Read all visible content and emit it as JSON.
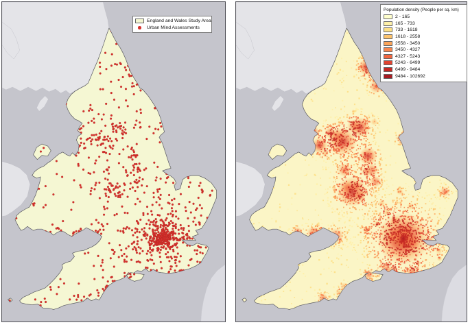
{
  "figure": {
    "type": "two-panel map figure",
    "region": "England and Wales"
  },
  "colors": {
    "sea": "#c5c5cc",
    "background_land": "#e4e4e8",
    "distant_land": "#dcdce2",
    "coastline": "#55555c",
    "background_coastline": "#bbbbc3",
    "study_area_fill": "#f5f7d3",
    "density_base_fill": "#fbf5c6",
    "assessment_dot": "#d6312d",
    "assessment_dot_edge": "#a82420",
    "panel_border": "#4e4e55",
    "legend_border": "#7a7a7a",
    "legend_bg": "#ffffff",
    "text": "#111111"
  },
  "left_panel": {
    "legend": {
      "items": [
        {
          "label": "England and Wales Study Area",
          "swatch": "area",
          "color": "#f5f7d3"
        },
        {
          "label": "Urban Mind Assessments",
          "swatch": "dot",
          "color": "#d6312d"
        }
      ]
    },
    "dot_seed": 7,
    "dot_radius": 1.5,
    "dot_clusters": [
      [
        248,
        353,
        150,
        7
      ],
      [
        248,
        353,
        110,
        15
      ],
      [
        249,
        354,
        80,
        28
      ],
      [
        172,
        283,
        28,
        8
      ],
      [
        172,
        283,
        14,
        15
      ],
      [
        156,
        208,
        24,
        9
      ],
      [
        124,
        214,
        8,
        4
      ],
      [
        141,
        197,
        6,
        5
      ],
      [
        116,
        192,
        4,
        3
      ],
      [
        184,
        188,
        13,
        7
      ],
      [
        175,
        186,
        6,
        4
      ],
      [
        196,
        229,
        11,
        6
      ],
      [
        204,
        180,
        3,
        3
      ],
      [
        193,
        97,
        11,
        6
      ],
      [
        200,
        105,
        4,
        3
      ],
      [
        207,
        125,
        5,
        4
      ],
      [
        247,
        205,
        4,
        3
      ],
      [
        199,
        252,
        11,
        7
      ],
      [
        207,
        268,
        7,
        4
      ],
      [
        161,
        251,
        7,
        5
      ],
      [
        148,
        349,
        12,
        6
      ],
      [
        115,
        345,
        8,
        5
      ],
      [
        91,
        343,
        5,
        4
      ],
      [
        124,
        341,
        3,
        2
      ],
      [
        224,
        400,
        12,
        8
      ],
      [
        261,
        403,
        9,
        6
      ],
      [
        197,
        407,
        5,
        4
      ],
      [
        287,
        357,
        6,
        5
      ],
      [
        302,
        372,
        6,
        6
      ],
      [
        270,
        390,
        3,
        4
      ],
      [
        310,
        283,
        4,
        3
      ],
      [
        259,
        305,
        5,
        4
      ],
      [
        243,
        283,
        3,
        3
      ],
      [
        224,
        315,
        5,
        4
      ],
      [
        236,
        327,
        5,
        4
      ],
      [
        231,
        352,
        6,
        5
      ],
      [
        210,
        331,
        5,
        4
      ],
      [
        193,
        340,
        3,
        3
      ],
      [
        160,
        424,
        4,
        3
      ],
      [
        129,
        442,
        6,
        4
      ],
      [
        152,
        434,
        4,
        4
      ],
      [
        62,
        450,
        5,
        5
      ],
      [
        80,
        432,
        4,
        5
      ],
      [
        108,
        443,
        5,
        5
      ],
      [
        170,
        416,
        4,
        5
      ],
      [
        20,
        322,
        2,
        2
      ],
      [
        50,
        300,
        3,
        3
      ],
      [
        56,
        278,
        2,
        2
      ],
      [
        85,
        227,
        6,
        7
      ],
      [
        60,
        222,
        2,
        3
      ],
      [
        98,
        152,
        3,
        4
      ],
      [
        11,
        445,
        1,
        0.5
      ],
      [
        165,
        42,
        2,
        2
      ],
      [
        188,
        72,
        3,
        5
      ],
      [
        195,
        115,
        4,
        6
      ],
      [
        175,
        95,
        3,
        6
      ]
    ],
    "dot_scatter": [
      [
        135,
        150,
        320,
        420,
        250
      ],
      [
        150,
        60,
        215,
        150,
        25
      ],
      [
        62,
        250,
        135,
        350,
        16
      ],
      [
        42,
        330,
        150,
        458,
        28
      ],
      [
        230,
        240,
        330,
        335,
        38
      ],
      [
        100,
        150,
        150,
        250,
        22
      ],
      [
        180,
        330,
        230,
        400,
        30
      ]
    ]
  },
  "right_panel": {
    "legend": {
      "title": "Population density (People per sq. km)",
      "classes": [
        {
          "label": "2 - 165",
          "color": "#ffffcc"
        },
        {
          "label": "165 - 733",
          "color": "#fef0a9"
        },
        {
          "label": "733 - 1618",
          "color": "#fde087"
        },
        {
          "label": "1618 - 2558",
          "color": "#fdc36c"
        },
        {
          "label": "2558 - 3450",
          "color": "#fca55a"
        },
        {
          "label": "3450 - 4327",
          "color": "#f9874e"
        },
        {
          "label": "4327 - 5243",
          "color": "#f1663f"
        },
        {
          "label": "5243 - 6499",
          "color": "#e04431"
        },
        {
          "label": "6499 - 9484",
          "color": "#c62823"
        },
        {
          "label": "9484 - 102692",
          "color": "#a81c22"
        }
      ]
    },
    "speckle": {
      "uniform": 3200,
      "clustered": 1600,
      "seed": 11
    },
    "hotspots": [
      [
        248,
        353,
        26,
        3
      ],
      [
        248,
        353,
        11,
        3
      ],
      [
        237,
        347,
        8,
        1
      ],
      [
        261,
        359,
        8,
        1
      ],
      [
        253,
        342,
        6,
        1
      ],
      [
        172,
        283,
        15,
        2
      ],
      [
        165,
        277,
        7,
        1
      ],
      [
        179,
        275,
        6,
        1
      ],
      [
        184,
        289,
        6,
        1
      ],
      [
        158,
        208,
        14,
        2
      ],
      [
        150,
        201,
        8,
        1
      ],
      [
        140,
        195,
        6,
        1
      ],
      [
        124,
        214,
        8,
        2
      ],
      [
        132,
        226,
        4,
        0
      ],
      [
        116,
        193,
        5,
        1
      ],
      [
        184,
        187,
        10,
        2
      ],
      [
        175,
        185,
        7,
        1
      ],
      [
        196,
        230,
        9,
        2
      ],
      [
        205,
        179,
        4,
        0
      ],
      [
        247,
        204,
        6,
        1
      ],
      [
        193,
        97,
        8,
        2
      ],
      [
        200,
        105,
        5,
        1
      ],
      [
        208,
        126,
        7,
        1
      ],
      [
        201,
        251,
        7,
        1
      ],
      [
        193,
        253,
        5,
        1
      ],
      [
        207,
        268,
        6,
        1
      ],
      [
        161,
        251,
        7,
        1
      ],
      [
        310,
        283,
        5,
        1
      ],
      [
        243,
        283,
        4,
        0
      ],
      [
        259,
        305,
        4,
        0
      ],
      [
        224,
        314,
        4,
        0
      ],
      [
        216,
        301,
        4,
        0
      ],
      [
        236,
        327,
        5,
        1
      ],
      [
        210,
        331,
        4,
        0
      ],
      [
        231,
        352,
        5,
        1
      ],
      [
        193,
        340,
        4,
        0
      ],
      [
        148,
        349,
        8,
        1
      ],
      [
        115,
        345,
        7,
        1
      ],
      [
        124,
        341,
        4,
        0
      ],
      [
        91,
        343,
        5,
        1
      ],
      [
        223,
        399,
        6,
        1
      ],
      [
        233,
        401,
        5,
        1
      ],
      [
        261,
        403,
        6,
        1
      ],
      [
        197,
        407,
        5,
        1
      ],
      [
        160,
        424,
        4,
        0
      ],
      [
        129,
        442,
        5,
        1
      ],
      [
        153,
        434,
        4,
        0
      ],
      [
        287,
        357,
        5,
        1
      ],
      [
        301,
        371,
        4,
        0
      ],
      [
        270,
        390,
        3,
        0
      ],
      [
        302,
        383,
        3,
        0
      ]
    ]
  }
}
